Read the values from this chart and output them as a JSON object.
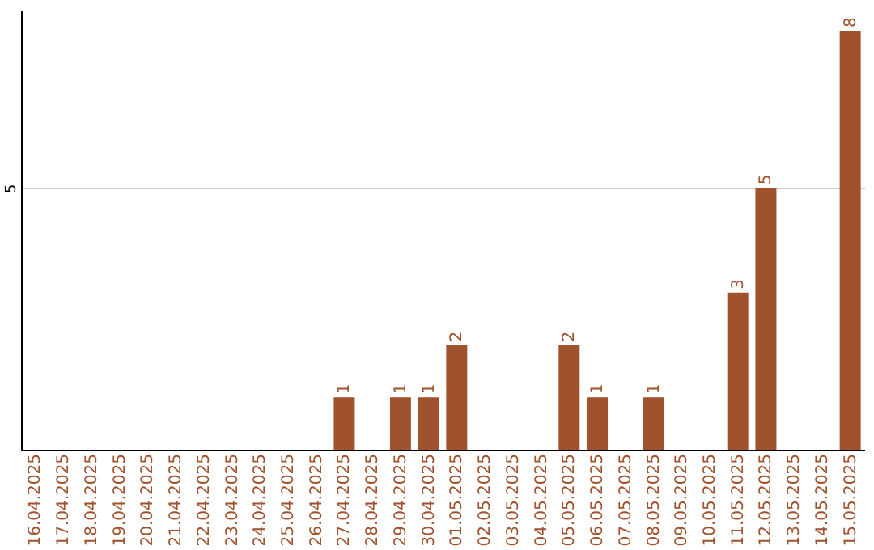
{
  "chart_data": {
    "type": "bar",
    "categories": [
      "16.04.2025",
      "17.04.2025",
      "18.04.2025",
      "19.04.2025",
      "20.04.2025",
      "21.04.2025",
      "22.04.2025",
      "23.04.2025",
      "24.04.2025",
      "25.04.2025",
      "26.04.2025",
      "27.04.2025",
      "28.04.2025",
      "29.04.2025",
      "30.04.2025",
      "01.05.2025",
      "02.05.2025",
      "03.05.2025",
      "04.05.2025",
      "05.05.2025",
      "06.05.2025",
      "07.05.2025",
      "08.05.2025",
      "09.05.2025",
      "10.05.2025",
      "11.05.2025",
      "12.05.2025",
      "13.05.2025",
      "14.05.2025",
      "15.05.2025"
    ],
    "values": [
      0,
      0,
      0,
      0,
      0,
      0,
      0,
      0,
      0,
      0,
      0,
      1,
      0,
      1,
      1,
      2,
      0,
      0,
      0,
      2,
      1,
      0,
      1,
      0,
      0,
      3,
      5,
      0,
      0,
      8
    ],
    "value_labels": [
      null,
      null,
      null,
      null,
      null,
      null,
      null,
      null,
      null,
      null,
      null,
      "1",
      null,
      "1",
      "1",
      "2",
      null,
      null,
      null,
      "2",
      "1",
      null,
      "1",
      null,
      null,
      "3",
      "5",
      null,
      null,
      "8"
    ],
    "color": "#a0522d",
    "ylim": [
      0,
      8.4
    ],
    "yticks": [
      5
    ],
    "grid": "y"
  }
}
